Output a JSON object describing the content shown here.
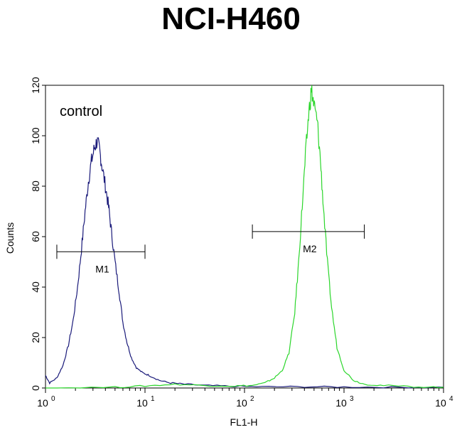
{
  "chart_data": {
    "type": "line",
    "title": "NCI-H460",
    "xlabel": "FL1-H",
    "ylabel": "Counts",
    "x_scale": "log",
    "xlim": [
      1,
      10000
    ],
    "ylim": [
      0,
      120
    ],
    "x_ticks": [
      {
        "value": 1,
        "base": "10",
        "exp": "0"
      },
      {
        "value": 10,
        "base": "10",
        "exp": "1"
      },
      {
        "value": 100,
        "base": "10",
        "exp": "2"
      },
      {
        "value": 1000,
        "base": "10",
        "exp": "3"
      },
      {
        "value": 10000,
        "base": "10",
        "exp": "4"
      }
    ],
    "y_ticks": [
      "0",
      "20",
      "40",
      "60",
      "80",
      "100",
      "120"
    ],
    "grid": false,
    "annotation": "control",
    "series": [
      {
        "color": "#1a1a7a",
        "points": [
          [
            1.0,
            5
          ],
          [
            1.1,
            2
          ],
          [
            1.3,
            4
          ],
          [
            1.5,
            9
          ],
          [
            1.7,
            17
          ],
          [
            1.9,
            27
          ],
          [
            2.1,
            40
          ],
          [
            2.3,
            55
          ],
          [
            2.5,
            70
          ],
          [
            2.7,
            82
          ],
          [
            2.9,
            90
          ],
          [
            3.1,
            95
          ],
          [
            3.3,
            98
          ],
          [
            3.5,
            94
          ],
          [
            3.7,
            88
          ],
          [
            4.0,
            80
          ],
          [
            4.3,
            72
          ],
          [
            4.6,
            62
          ],
          [
            5.0,
            50
          ],
          [
            5.5,
            38
          ],
          [
            6.0,
            26
          ],
          [
            6.6,
            18
          ],
          [
            7.3,
            12
          ],
          [
            8.2,
            8
          ],
          [
            9.5,
            6
          ],
          [
            11,
            5
          ],
          [
            14,
            3
          ],
          [
            18,
            2
          ],
          [
            25,
            1.5
          ],
          [
            40,
            1
          ],
          [
            70,
            0.7
          ],
          [
            150,
            0.5
          ],
          [
            400,
            0.5
          ],
          [
            1000,
            0.4
          ],
          [
            3000,
            0.3
          ],
          [
            10000,
            0.3
          ]
        ]
      },
      {
        "color": "#2bd62b",
        "points": [
          [
            1.0,
            0
          ],
          [
            5,
            0.3
          ],
          [
            10,
            0.8
          ],
          [
            20,
            1.5
          ],
          [
            40,
            1
          ],
          [
            80,
            0.8
          ],
          [
            120,
            1
          ],
          [
            160,
            2
          ],
          [
            200,
            4
          ],
          [
            240,
            7
          ],
          [
            280,
            14
          ],
          [
            320,
            30
          ],
          [
            350,
            50
          ],
          [
            380,
            72
          ],
          [
            410,
            92
          ],
          [
            440,
            108
          ],
          [
            470,
            118
          ],
          [
            500,
            112
          ],
          [
            540,
            105
          ],
          [
            580,
            90
          ],
          [
            620,
            72
          ],
          [
            680,
            50
          ],
          [
            750,
            32
          ],
          [
            850,
            16
          ],
          [
            1000,
            7
          ],
          [
            1250,
            3
          ],
          [
            1600,
            1.5
          ],
          [
            2500,
            1
          ],
          [
            5000,
            0.5
          ],
          [
            10000,
            0.3
          ]
        ]
      }
    ],
    "markers": [
      {
        "label": "M1",
        "x_start": 1.3,
        "x_end": 10,
        "y": 54
      },
      {
        "label": "M2",
        "x_start": 120,
        "x_end": 1600,
        "y": 62
      }
    ]
  }
}
